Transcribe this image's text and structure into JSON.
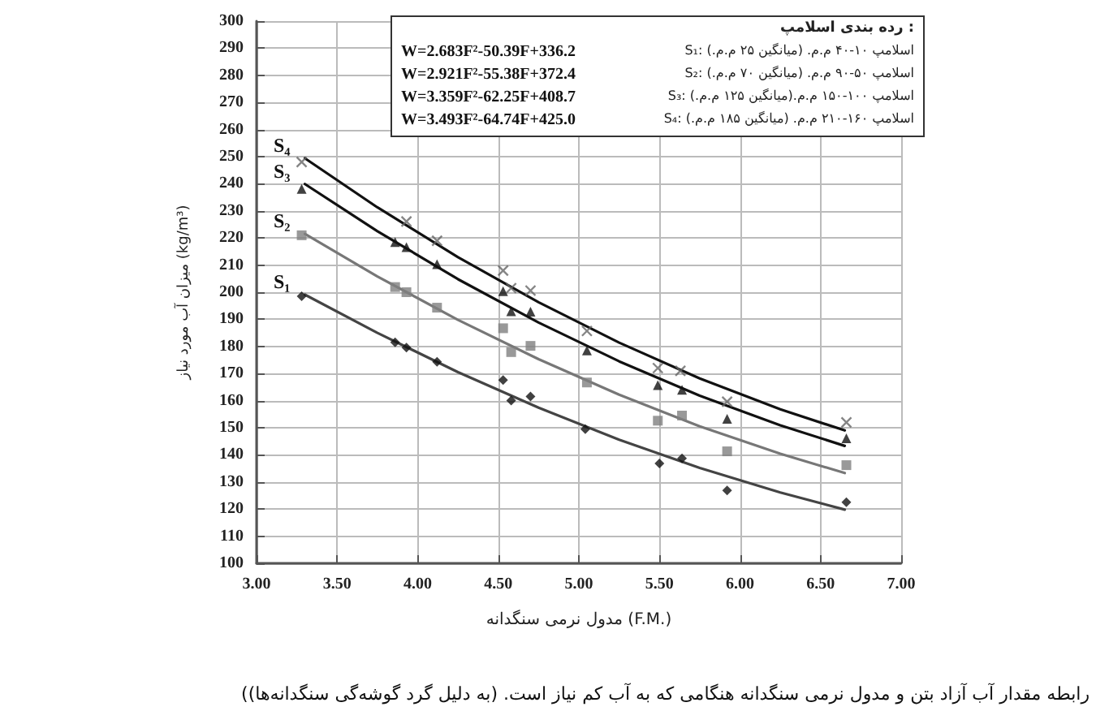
{
  "chart_data": {
    "type": "scatter",
    "xlabel": "مدول نرمی سنگدانه (F.M.)",
    "ylabel": "میزان آب مورد نیاز (kg/m³)",
    "annotations": [
      "رده بندی اسلامپ :",
      "S₁: اسلامپ ۱۰-۴۰ م.م. (میانگین ۲۵ م.م.)",
      "W=2.683F²-50.39F+336.2",
      "S₂: اسلامپ ۵۰-۹۰ م.م. (میانگین ۷۰ م.م.)",
      "W=2.921F²-55.38F+372.4",
      "S₃: اسلامپ ۱۰۰-۱۵۰ م.م.(میانگین ۱۲۵ م.م.)",
      "W=3.359F²-62.25F+408.7",
      "S₄: اسلامپ ۱۶۰-۲۱۰ م.م. (میانگین ۱۸۵ م.م.)",
      "W=3.493F²-64.74F+425.0",
      "(رابطه مقدار آب آزاد بتن و مدول نرمی سنگدانه هنگامی که به آب کم نیاز است. (به دلیل گرد گوشه‌گی سنگدانه‌ها)"
    ],
    "xlim": [
      3,
      7
    ],
    "xticks": [
      {
        "value": 3,
        "label": "3.00"
      },
      {
        "value": 3.5,
        "label": "3.50"
      },
      {
        "value": 4,
        "label": "4.00"
      },
      {
        "value": 4.5,
        "label": "4.50"
      },
      {
        "value": 5,
        "label": "5.00"
      },
      {
        "value": 5.5,
        "label": "5.50"
      },
      {
        "value": 6,
        "label": "6.00"
      },
      {
        "value": 6.5,
        "label": "6.50"
      },
      {
        "value": 7,
        "label": "7.00"
      }
    ],
    "ylim": [
      100,
      300
    ],
    "yticks": [
      100,
      110,
      120,
      130,
      140,
      150,
      160,
      170,
      180,
      190,
      200,
      210,
      220,
      230,
      240,
      250,
      260,
      270,
      280,
      290,
      300
    ],
    "grid": true,
    "legend": false,
    "series": [
      {
        "marker": "diamond",
        "color": "#111111",
        "x": [
          3.28,
          3.86,
          3.93,
          4.12,
          4.53,
          4.58,
          4.7,
          5.04,
          5.5,
          5.64,
          5.92,
          6.66
        ],
        "values": [
          198.5,
          181.5,
          179.6,
          174.3,
          167.6,
          160,
          161.5,
          149.5,
          136.8,
          138.7,
          126.9,
          122.5
        ]
      },
      {
        "marker": "square",
        "color": "#7f7f7f",
        "x": [
          3.28,
          3.86,
          3.93,
          4.12,
          4.53,
          4.58,
          4.7,
          5.05,
          5.49,
          5.64,
          5.92,
          6.66
        ],
        "values": [
          221,
          201.9,
          200,
          194.3,
          186.7,
          177.9,
          180.2,
          166.7,
          152.6,
          154.5,
          141.3,
          136.2
        ]
      },
      {
        "marker": "triangle",
        "color": "#111111",
        "x": [
          3.28,
          3.86,
          3.93,
          4.12,
          4.53,
          4.58,
          4.7,
          5.05,
          5.49,
          5.64,
          5.92,
          6.66
        ],
        "values": [
          238.1,
          218.5,
          216.6,
          210.3,
          200.4,
          193,
          192.8,
          178.5,
          165.7,
          164,
          153.3,
          146.1
        ]
      },
      {
        "marker": "cross",
        "color": "#666666",
        "x": [
          3.28,
          3.93,
          4.12,
          4.53,
          4.58,
          4.7,
          5.05,
          5.49,
          5.63,
          5.92,
          6.66
        ],
        "values": [
          248,
          226.1,
          219,
          208,
          201.5,
          200.6,
          185.7,
          172,
          171,
          159.6,
          152
        ]
      },
      {
        "type": "line",
        "name": "S₁",
        "color": "#444444",
        "marker": "none",
        "x": [
          3.3,
          3.75,
          4.25,
          4.75,
          5.25,
          5.75,
          6.25,
          6.65
        ],
        "values": [
          199.1,
          185,
          170.5,
          157.4,
          145.6,
          135.2,
          126.1,
          119.8
        ]
      },
      {
        "type": "line",
        "name": "S₂",
        "color": "#777777",
        "marker": "none",
        "x": [
          3.3,
          3.75,
          4.25,
          4.75,
          5.25,
          5.75,
          6.25,
          6.65
        ],
        "values": [
          221.5,
          205.8,
          189.8,
          175.3,
          162.2,
          150.5,
          140.4,
          133.3
        ]
      },
      {
        "type": "line",
        "name": "S₃",
        "color": "#111111",
        "marker": "none",
        "x": [
          3.3,
          3.75,
          4.25,
          4.75,
          5.25,
          5.75,
          6.25,
          6.65
        ],
        "values": [
          239.9,
          222.5,
          204.8,
          188.8,
          174.5,
          161.8,
          150.9,
          143.3
        ]
      },
      {
        "type": "line",
        "name": "S₄",
        "color": "#111111",
        "marker": "none",
        "x": [
          3.3,
          3.75,
          4.25,
          4.75,
          5.25,
          5.75,
          6.25,
          6.65
        ],
        "values": [
          249.4,
          231.3,
          212.9,
          196.3,
          181.4,
          168.2,
          156.8,
          149
        ]
      }
    ]
  }
}
